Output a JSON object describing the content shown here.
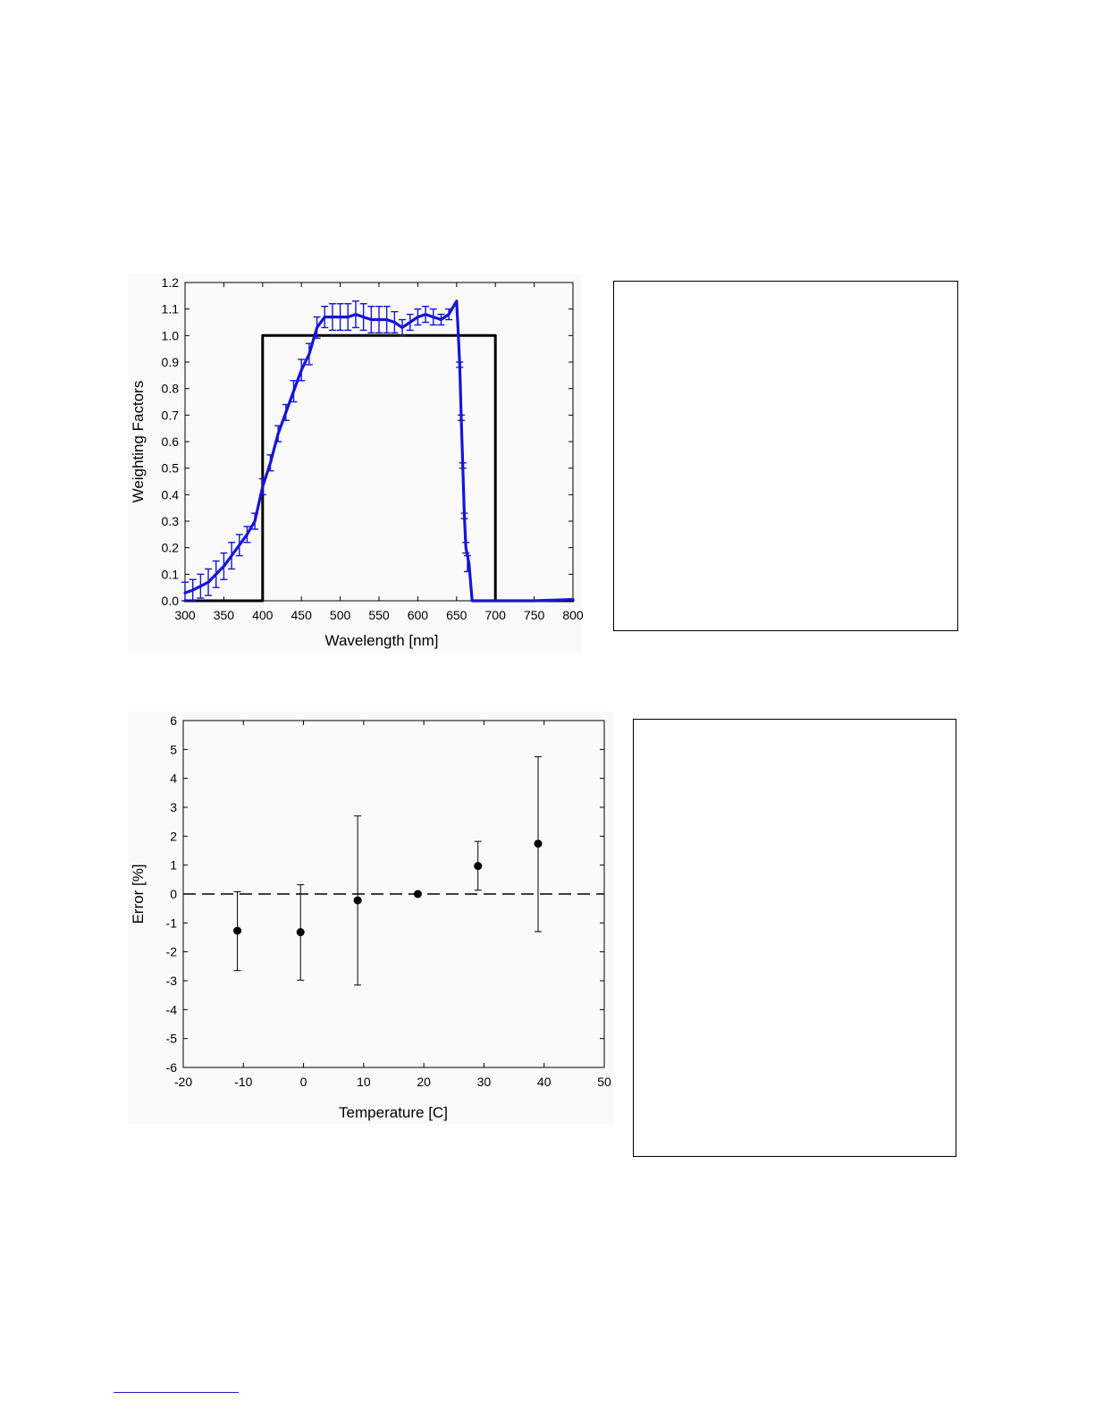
{
  "colors": {
    "series_blue": "#1515d6",
    "reference_black": "#000000",
    "marker_black": "#000000"
  },
  "chart_data": [
    {
      "type": "line",
      "xlabel": "Wavelength [nm]",
      "ylabel": "Weighting Factors",
      "xlim": [
        300,
        800
      ],
      "ylim": [
        0.0,
        1.2
      ],
      "xticks": [
        300,
        350,
        400,
        450,
        500,
        550,
        600,
        650,
        700,
        750,
        800
      ],
      "yticks": [
        0.0,
        0.1,
        0.2,
        0.3,
        0.4,
        0.5,
        0.6,
        0.7,
        0.8,
        0.9,
        1.0,
        1.1,
        1.2
      ],
      "ytick_labels": [
        "0.0",
        "0.1",
        "0.2",
        "0.3",
        "0.4",
        "0.5",
        "0.6",
        "0.7",
        "0.8",
        "0.9",
        "1.0",
        "1.1",
        "1.2"
      ],
      "grid": false,
      "series": [
        {
          "style": "step-line",
          "color": "#000000",
          "x": [
            300,
            400,
            400,
            700,
            700,
            800
          ],
          "y": [
            0.0,
            0.0,
            1.0,
            1.0,
            0.0,
            0.0
          ]
        },
        {
          "style": "line-with-errorbars",
          "color": "#1515d6",
          "x": [
            300,
            310,
            320,
            330,
            340,
            350,
            360,
            370,
            380,
            390,
            400,
            410,
            420,
            430,
            440,
            450,
            460,
            470,
            480,
            490,
            500,
            510,
            520,
            530,
            540,
            550,
            560,
            570,
            580,
            590,
            600,
            610,
            620,
            630,
            640,
            650,
            652,
            654,
            656,
            658,
            660,
            662,
            666,
            670,
            680,
            700,
            720,
            750,
            800
          ],
          "y": [
            0.03,
            0.04,
            0.055,
            0.07,
            0.1,
            0.13,
            0.17,
            0.21,
            0.25,
            0.3,
            0.43,
            0.52,
            0.63,
            0.71,
            0.79,
            0.87,
            0.93,
            1.03,
            1.07,
            1.07,
            1.07,
            1.07,
            1.08,
            1.07,
            1.06,
            1.06,
            1.06,
            1.05,
            1.03,
            1.05,
            1.07,
            1.08,
            1.07,
            1.06,
            1.08,
            1.13,
            1.02,
            0.89,
            0.69,
            0.51,
            0.32,
            0.2,
            0.14,
            0.0,
            0.0,
            0.0,
            0.0,
            0.0,
            0.005
          ],
          "errorbar_x": [
            300,
            310,
            320,
            330,
            340,
            350,
            360,
            370,
            380,
            390,
            400,
            410,
            420,
            430,
            440,
            450,
            460,
            470,
            480,
            490,
            500,
            510,
            520,
            530,
            540,
            550,
            560,
            570,
            580,
            590,
            600,
            610,
            620,
            630,
            640,
            654,
            656,
            658,
            660,
            662,
            664
          ],
          "errorbar_y": [
            0.03,
            0.04,
            0.055,
            0.07,
            0.1,
            0.13,
            0.17,
            0.21,
            0.25,
            0.3,
            0.43,
            0.52,
            0.63,
            0.71,
            0.79,
            0.87,
            0.93,
            1.03,
            1.07,
            1.07,
            1.07,
            1.07,
            1.08,
            1.07,
            1.06,
            1.06,
            1.06,
            1.05,
            1.03,
            1.05,
            1.07,
            1.08,
            1.07,
            1.06,
            1.08,
            0.89,
            0.69,
            0.51,
            0.32,
            0.2,
            0.14
          ],
          "errorbar_half": [
            0.04,
            0.04,
            0.045,
            0.05,
            0.05,
            0.05,
            0.05,
            0.04,
            0.03,
            0.03,
            0.03,
            0.03,
            0.03,
            0.03,
            0.04,
            0.04,
            0.04,
            0.04,
            0.04,
            0.05,
            0.05,
            0.05,
            0.05,
            0.05,
            0.05,
            0.05,
            0.05,
            0.04,
            0.03,
            0.03,
            0.03,
            0.03,
            0.03,
            0.02,
            0.02,
            0.01,
            0.01,
            0.01,
            0.01,
            0.02,
            0.03
          ]
        }
      ]
    },
    {
      "type": "scatter",
      "xlabel": "Temperature [C]",
      "ylabel": "Error [%]",
      "xlim": [
        -20,
        50
      ],
      "ylim": [
        -6,
        6
      ],
      "xticks": [
        -20,
        -10,
        0,
        10,
        20,
        30,
        40,
        50
      ],
      "yticks": [
        -6,
        -5,
        -4,
        -3,
        -2,
        -1,
        0,
        1,
        2,
        3,
        4,
        5,
        6
      ],
      "grid": false,
      "reference_line": {
        "y": 0,
        "style": "dashed"
      },
      "series": [
        {
          "color": "#000000",
          "x": [
            -11,
            -0.5,
            9,
            19,
            29,
            39
          ],
          "y": [
            -1.27,
            -1.32,
            -0.22,
            0.0,
            0.97,
            1.74
          ],
          "err_low": [
            -2.65,
            -2.98,
            -3.15,
            0.0,
            0.13,
            -1.3
          ],
          "err_high": [
            0.08,
            0.32,
            2.7,
            0.0,
            1.82,
            4.75
          ]
        }
      ]
    }
  ]
}
